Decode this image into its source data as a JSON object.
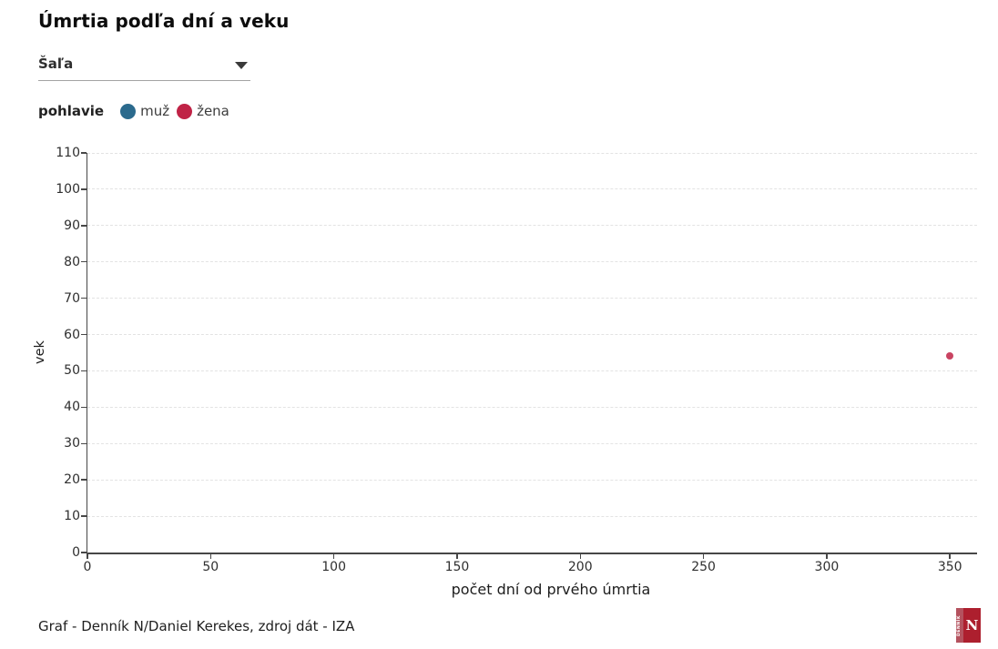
{
  "header": {
    "title": "Úmrtia podľa dní a veku",
    "dropdown": {
      "value": "Šaľa"
    },
    "legend": {
      "label": "pohlavie",
      "items": [
        {
          "label": "muž",
          "color": "#2b6a8d"
        },
        {
          "label": "žena",
          "color": "#c02346"
        }
      ]
    }
  },
  "footer": {
    "credit": "Graf - Denník N/Daniel Kerekes, zdroj dát - IZA",
    "logo": {
      "wordmark": "DENNÍK",
      "letter": "N"
    }
  },
  "chart_data": {
    "type": "scatter",
    "title": "Úmrtia podľa dní a veku",
    "xlabel": "počet dní od prvého úmrtia",
    "ylabel": "vek",
    "xlim": [
      0,
      361
    ],
    "ylim": [
      0,
      110
    ],
    "x_ticks": [
      0,
      50,
      100,
      150,
      200,
      250,
      300,
      350
    ],
    "y_ticks": [
      0,
      10,
      20,
      30,
      40,
      50,
      60,
      70,
      80,
      90,
      100,
      110
    ],
    "grid": "horizontal-dashed",
    "legend_position": "top-left",
    "axis_color": "#474747",
    "gridline_color": "#e3e3e3",
    "series": [
      {
        "name": "muž",
        "color": "#2b6a8d",
        "points": []
      },
      {
        "name": "žena",
        "color": "#c02346",
        "points": [
          {
            "x": 350,
            "y": 54
          }
        ]
      }
    ]
  }
}
